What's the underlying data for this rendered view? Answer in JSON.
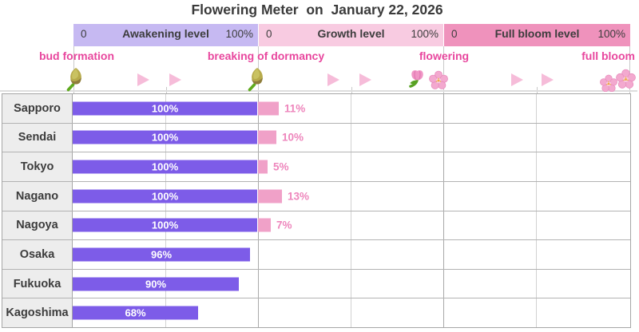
{
  "title": "Flowering Meter  on  January 22, 2026",
  "scale_headers": [
    {
      "label": "Awakening level",
      "min": "0",
      "max": "100%",
      "color": "#c6b9f2"
    },
    {
      "label": "Growth level",
      "min": "0",
      "max": "100%",
      "color": "#f8cbe1"
    },
    {
      "label": "Full bloom level",
      "min": "0",
      "max": "100%",
      "color": "#ef92bc"
    }
  ],
  "stages": [
    "bud formation",
    "breaking of dormancy",
    "flowering",
    "full bloom"
  ],
  "colors": {
    "awakening_bar": "#7d5ce8",
    "growth_bar": "#f0a1c8",
    "growth_label": "#ee86bc",
    "stage_label": "#e8479e",
    "arrows": "#f6bcd9"
  },
  "chart_data": {
    "type": "bar",
    "title": "Flowering Meter on January 22, 2026",
    "categories": [
      "Sapporo",
      "Sendai",
      "Tokyo",
      "Nagano",
      "Nagoya",
      "Osaka",
      "Fukuoka",
      "Kagoshima"
    ],
    "series": [
      {
        "name": "Awakening level",
        "unit": "%",
        "range": [
          0,
          100
        ],
        "color": "#7d5ce8",
        "values": [
          100,
          100,
          100,
          100,
          100,
          96,
          90,
          68
        ]
      },
      {
        "name": "Growth level",
        "unit": "%",
        "range": [
          0,
          100
        ],
        "color": "#f0a1c8",
        "values": [
          11,
          10,
          5,
          13,
          7,
          null,
          null,
          null
        ]
      },
      {
        "name": "Full bloom level",
        "unit": "%",
        "range": [
          0,
          100
        ],
        "color": "#ef92bc",
        "values": [
          null,
          null,
          null,
          null,
          null,
          null,
          null,
          null
        ]
      }
    ],
    "value_labels": [
      "100%",
      "100%",
      "100%",
      "100%",
      "100%",
      "96%",
      "90%",
      "68%"
    ],
    "secondary_value_labels": [
      "11%",
      "10%",
      "5%",
      "13%",
      "7%",
      "",
      "",
      ""
    ],
    "xlabel": "",
    "ylabel": "",
    "layout": "horizontal stacked scale: each of 3 sections spans 0-100%",
    "grid": "on"
  }
}
